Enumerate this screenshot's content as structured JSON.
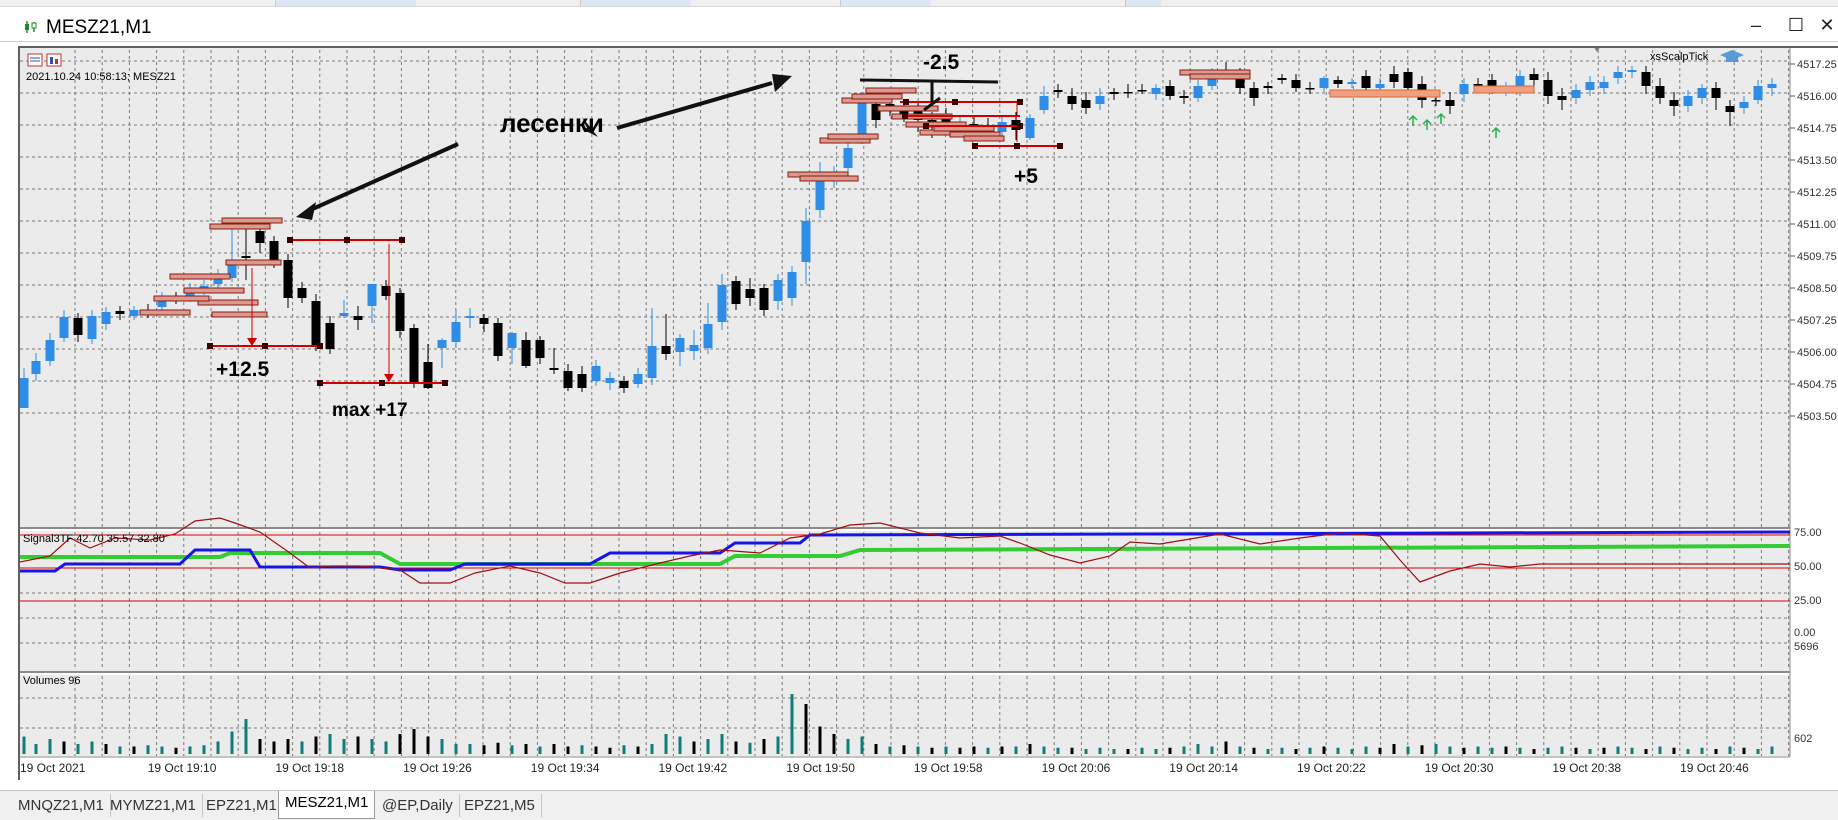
{
  "window": {
    "title": "MESZ21,M1",
    "icon": "chart-icon"
  },
  "window_buttons": [
    {
      "name": "minimize-button",
      "glyph": "–"
    },
    {
      "name": "maximize-button",
      "glyph": "☐"
    },
    {
      "name": "close-button",
      "glyph": "✕"
    }
  ],
  "chart": {
    "header_info": "2021.10.24 10:58:13; MESZ21",
    "indicator_name": "xsScalpTick",
    "price_ticks": [
      "4517.25",
      "4516.00",
      "4514.75",
      "4513.50",
      "4512.25",
      "4511.00",
      "4509.75",
      "4508.50",
      "4507.25",
      "4506.00",
      "4504.75",
      "4503.50"
    ],
    "time_ticks": [
      "19 Oct 2021",
      "19 Oct 19:10",
      "19 Oct 19:18",
      "19 Oct 19:26",
      "19 Oct 19:34",
      "19 Oct 19:42",
      "19 Oct 19:50",
      "19 Oct 19:58",
      "19 Oct 20:06",
      "19 Oct 20:14",
      "19 Oct 20:22",
      "19 Oct 20:30",
      "19 Oct 20:38",
      "19 Oct 20:46"
    ],
    "annotations": {
      "ladders_label": "лесенки",
      "trade1_label": "+12.5",
      "trade2_label": "max +17",
      "trade3_label": "-2.5",
      "trade4_label": "+5"
    },
    "colors": {
      "bull": "#2e8de6",
      "bear": "#000000",
      "level": "#d00000",
      "grid": "#7a7a7a",
      "background": "#ebebeb"
    }
  },
  "signal_panel": {
    "label": "Signal3TF 42.70 35.57 32.80",
    "levels": [
      "75.00",
      "50.00",
      "25.00",
      "0.00"
    ],
    "colors": {
      "blue": "#1515e6",
      "green": "#33cc33",
      "dark_red": "#a01010",
      "level": "#e00000"
    }
  },
  "volume_panel": {
    "label": "Volumes 96",
    "ticks": [
      "5696",
      "602"
    ],
    "colors": {
      "up": "#0e7d78",
      "down": "#000000"
    }
  },
  "tabs": [
    {
      "label": "MNQZ21,M1",
      "active": false
    },
    {
      "label": "MYMZ21,M1",
      "active": false
    },
    {
      "label": "EPZ21,M1",
      "active": false
    },
    {
      "label": "MESZ21,M1",
      "active": true
    },
    {
      "label": "@EP,Daily",
      "active": false
    },
    {
      "label": "EPZ21,M5",
      "active": false
    }
  ]
}
